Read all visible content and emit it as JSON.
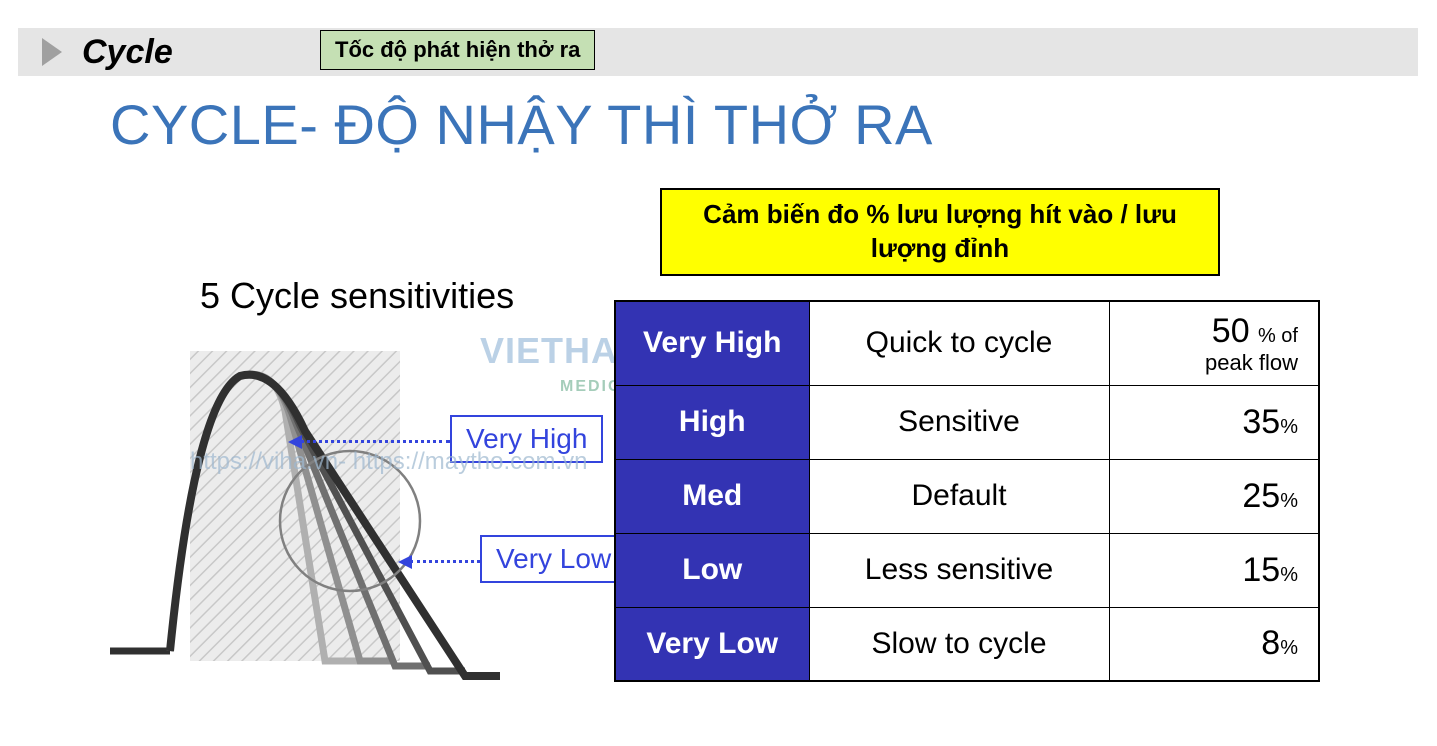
{
  "header": {
    "title": "Cycle",
    "green_box": "Tốc độ phát hiện thở ra"
  },
  "main_title": "CYCLE- ĐỘ NHẬY THÌ THỞ RA",
  "yellow_box": "Cảm biến đo % lưu lượng hít vào / lưu lượng đỉnh",
  "diagram": {
    "title": "5 Cycle sensitivities",
    "label_high": "Very High",
    "label_low": "Very Low",
    "curve_colors": [
      "#303030",
      "#505050",
      "#707070",
      "#909090",
      "#b0b0b0"
    ],
    "hatch_bg": "#e8e8e8",
    "circle_stroke": "#808080",
    "label_border": "#3344dd",
    "label_text_color": "#3344dd"
  },
  "watermark": {
    "logo_text": "VIETHA",
    "logo_sub": "MEDICAL",
    "url": "https://viha.vn- https://maytho.com.vn"
  },
  "table": {
    "header_bg": "#3333b3",
    "header_fg": "#ffffff",
    "cell_bg": "#ffffff",
    "border_color": "#000000",
    "peak_flow_note": "% of peak flow",
    "rows": [
      {
        "level": "Very High",
        "desc": "Quick to cycle",
        "pct": "50",
        "unit": "%",
        "show_note": true
      },
      {
        "level": "High",
        "desc": "Sensitive",
        "pct": "35",
        "unit": "%",
        "show_note": false
      },
      {
        "level": "Med",
        "desc": "Default",
        "pct": "25",
        "unit": "%",
        "show_note": false
      },
      {
        "level": "Low",
        "desc": "Less sensitive",
        "pct": "15",
        "unit": "%",
        "show_note": false
      },
      {
        "level": "Very Low",
        "desc": "Slow to cycle",
        "pct": "8",
        "unit": "%",
        "show_note": false
      }
    ]
  },
  "colors": {
    "header_bar_bg": "#e5e5e5",
    "main_title_color": "#3b74b9",
    "green_box_bg": "#c5e0b4",
    "yellow_box_bg": "#ffff00"
  }
}
